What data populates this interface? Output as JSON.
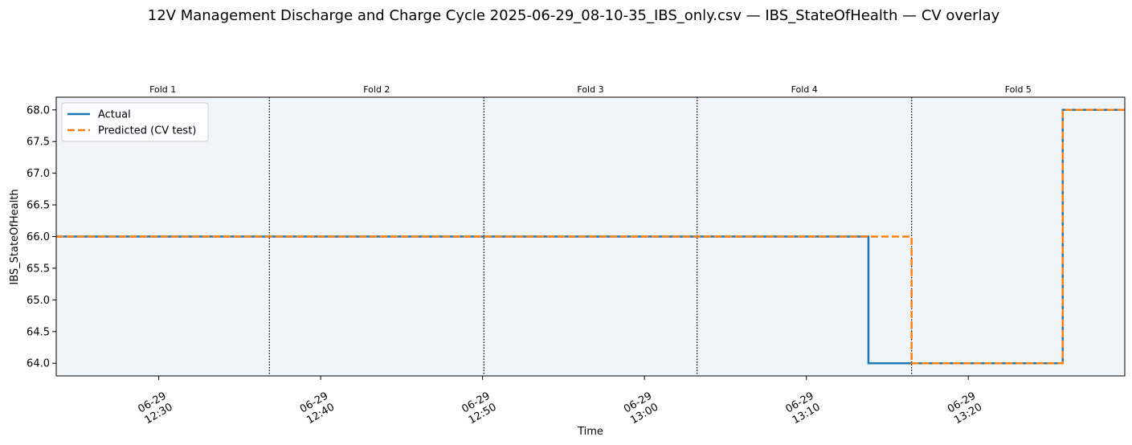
{
  "chart_data": {
    "type": "line",
    "title": "12V Management  Discharge and Charge Cycle 2025-06-29_08-10-35_IBS_only.csv — IBS_StateOfHealth — CV overlay",
    "xlabel": "Time",
    "ylabel": "IBS_StateOfHealth",
    "xlim": [
      "2025-06-29 12:23:40",
      "2025-06-29 13:29:40"
    ],
    "ylim": [
      63.8,
      68.2
    ],
    "yticks": [
      "64.0",
      "64.5",
      "65.0",
      "65.5",
      "66.0",
      "66.5",
      "67.0",
      "67.5",
      "68.0"
    ],
    "xticks": [
      {
        "t": "2025-06-29 12:30",
        "line1": "06-29",
        "line2": "12:30"
      },
      {
        "t": "2025-06-29 12:40",
        "line1": "06-29",
        "line2": "12:40"
      },
      {
        "t": "2025-06-29 12:50",
        "line1": "06-29",
        "line2": "12:50"
      },
      {
        "t": "2025-06-29 13:00",
        "line1": "06-29",
        "line2": "13:00"
      },
      {
        "t": "2025-06-29 13:10",
        "line1": "06-29",
        "line2": "13:10"
      },
      {
        "t": "2025-06-29 13:20",
        "line1": "06-29",
        "line2": "13:20"
      }
    ],
    "folds": [
      {
        "label": "Fold 1",
        "start": "2025-06-29 12:23:40",
        "end": "2025-06-29 12:36:50"
      },
      {
        "label": "Fold 2",
        "start": "2025-06-29 12:36:50",
        "end": "2025-06-29 12:50:05"
      },
      {
        "label": "Fold 3",
        "start": "2025-06-29 12:50:05",
        "end": "2025-06-29 13:03:15"
      },
      {
        "label": "Fold 4",
        "start": "2025-06-29 13:03:15",
        "end": "2025-06-29 13:16:30"
      },
      {
        "label": "Fold 5",
        "start": "2025-06-29 13:16:30",
        "end": "2025-06-29 13:29:40"
      }
    ],
    "series": [
      {
        "name": "Actual",
        "color": "#1f77b4",
        "style": "solid",
        "step": true,
        "points": [
          {
            "t": "2025-06-29 12:23:40",
            "v": 66
          },
          {
            "t": "2025-06-29 13:13:50",
            "v": 64
          },
          {
            "t": "2025-06-29 13:25:50",
            "v": 68
          },
          {
            "t": "2025-06-29 13:29:40",
            "v": 68
          }
        ]
      },
      {
        "name": "Predicted (CV test)",
        "color": "#ff7f0e",
        "style": "dashed",
        "step": true,
        "points": [
          {
            "t": "2025-06-29 12:23:40",
            "v": 66
          },
          {
            "t": "2025-06-29 13:16:30",
            "v": 64
          },
          {
            "t": "2025-06-29 13:25:50",
            "v": 68
          },
          {
            "t": "2025-06-29 13:29:40",
            "v": 68
          }
        ]
      }
    ],
    "legend_position": "upper-left",
    "fold_background": "#f0f5fa"
  }
}
